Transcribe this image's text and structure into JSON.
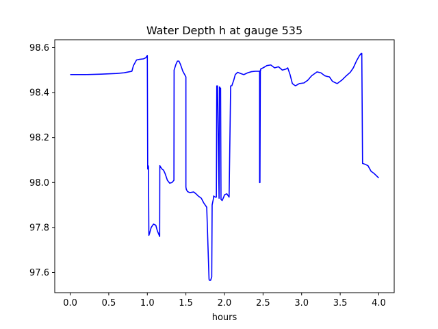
{
  "chart_data": {
    "type": "line",
    "title": "Water Depth h at gauge 535",
    "xlabel": "hours",
    "ylabel": "",
    "xlim": [
      -0.2,
      4.2
    ],
    "ylim": [
      97.51,
      98.635
    ],
    "xticks": [
      0.0,
      0.5,
      1.0,
      1.5,
      2.0,
      2.5,
      3.0,
      3.5,
      4.0
    ],
    "xtick_labels": [
      "0.0",
      "0.5",
      "1.0",
      "1.5",
      "2.0",
      "2.5",
      "3.0",
      "3.5",
      "4.0"
    ],
    "yticks": [
      97.6,
      97.8,
      98.0,
      98.2,
      98.4,
      98.6
    ],
    "ytick_labels": [
      "97.6",
      "97.8",
      "98.0",
      "98.2",
      "98.4",
      "98.6"
    ],
    "grid": false,
    "series": [
      {
        "color": "#0000ff",
        "x": [
          0.0,
          0.2,
          0.4,
          0.6,
          0.7,
          0.8,
          0.82,
          0.86,
          0.9,
          0.95,
          0.98,
          1.0,
          1.005,
          1.01,
          1.015,
          1.02,
          1.03,
          1.05,
          1.08,
          1.11,
          1.13,
          1.16,
          1.162,
          1.17,
          1.19,
          1.21,
          1.23,
          1.26,
          1.29,
          1.32,
          1.345,
          1.347,
          1.37,
          1.39,
          1.41,
          1.43,
          1.46,
          1.5,
          1.5,
          1.505,
          1.52,
          1.55,
          1.6,
          1.63,
          1.66,
          1.7,
          1.73,
          1.77,
          1.8,
          1.805,
          1.82,
          1.835,
          1.84,
          1.855,
          1.86,
          1.88,
          1.895,
          1.9,
          1.91,
          1.93,
          1.935,
          1.945,
          1.95,
          1.955,
          1.97,
          1.99,
          2.0,
          2.03,
          2.06,
          2.08,
          2.095,
          2.1,
          2.12,
          2.14,
          2.17,
          2.21,
          2.25,
          2.3,
          2.35,
          2.4,
          2.455,
          2.455,
          2.46,
          2.465,
          2.47,
          2.47,
          2.5,
          2.55,
          2.6,
          2.65,
          2.7,
          2.75,
          2.8,
          2.82,
          2.85,
          2.88,
          2.92,
          2.97,
          3.03,
          3.08,
          3.13,
          3.2,
          3.25,
          3.3,
          3.33,
          3.36,
          3.4,
          3.46,
          3.52,
          3.58,
          3.63,
          3.67,
          3.71,
          3.75,
          3.775,
          3.78,
          3.79,
          3.83,
          3.86,
          3.9,
          3.94,
          4.0
        ],
        "y": [
          98.48,
          98.48,
          98.482,
          98.485,
          98.488,
          98.495,
          98.52,
          98.545,
          98.548,
          98.55,
          98.555,
          98.565,
          98.06,
          98.075,
          98.07,
          97.765,
          97.775,
          97.8,
          97.815,
          97.81,
          97.785,
          97.76,
          98.075,
          98.07,
          98.06,
          98.055,
          98.04,
          98.01,
          97.997,
          98.0,
          98.01,
          98.5,
          98.525,
          98.54,
          98.54,
          98.525,
          98.495,
          98.47,
          97.98,
          97.97,
          97.96,
          97.955,
          97.958,
          97.95,
          97.94,
          97.93,
          97.91,
          97.89,
          97.57,
          97.565,
          97.565,
          97.58,
          97.9,
          97.925,
          97.94,
          97.935,
          97.935,
          98.43,
          98.43,
          97.93,
          98.425,
          98.42,
          98.42,
          97.925,
          97.92,
          97.935,
          97.945,
          97.95,
          97.935,
          98.43,
          98.43,
          98.435,
          98.455,
          98.48,
          98.49,
          98.485,
          98.48,
          98.488,
          98.493,
          98.495,
          98.495,
          98.0,
          98.0,
          98.5,
          98.5,
          98.505,
          98.51,
          98.52,
          98.523,
          98.51,
          98.515,
          98.5,
          98.505,
          98.51,
          98.48,
          98.44,
          98.43,
          98.44,
          98.443,
          98.455,
          98.475,
          98.492,
          98.488,
          98.475,
          98.472,
          98.47,
          98.45,
          98.44,
          98.455,
          98.475,
          98.49,
          98.51,
          98.54,
          98.565,
          98.575,
          98.575,
          98.085,
          98.08,
          98.075,
          98.05,
          98.04,
          98.02
        ]
      }
    ]
  }
}
